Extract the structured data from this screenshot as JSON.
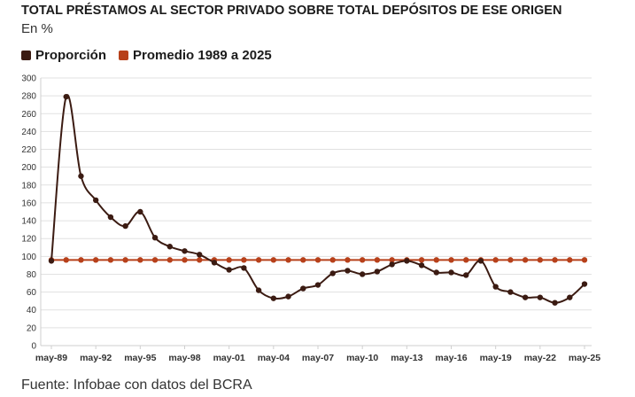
{
  "title": "TOTAL PRÉSTAMOS AL SECTOR PRIVADO SOBRE TOTAL DEPÓSITOS DE ESE ORIGEN",
  "subtitle": "En %",
  "source": "Fuente: Infobae con datos del BCRA",
  "chart_data": {
    "type": "line",
    "ylim": [
      0,
      300
    ],
    "yticks": [
      0,
      20,
      40,
      60,
      80,
      100,
      120,
      140,
      160,
      180,
      200,
      220,
      240,
      260,
      280,
      300
    ],
    "ytick_labels": [
      "0",
      "20",
      "40",
      "60",
      "80",
      "100",
      "120",
      "140",
      "160",
      "180",
      "200",
      "220",
      "240",
      "260",
      "280",
      "300"
    ],
    "xtick_labels": [
      "may-89",
      "may-92",
      "may-95",
      "may-98",
      "may-01",
      "may-04",
      "may-07",
      "may-10",
      "may-13",
      "may-16",
      "may-19",
      "may-22",
      "may-25"
    ],
    "grid": true,
    "legend_position": "top-left",
    "series": [
      {
        "name": "Proporción",
        "color": "#3b1b12",
        "values": [
          95,
          279,
          190,
          163,
          144,
          134,
          150,
          121,
          111,
          106,
          102,
          93,
          85,
          87,
          62,
          53,
          55,
          64,
          68,
          81,
          84,
          80,
          83,
          91,
          95,
          90,
          82,
          82,
          79,
          95,
          66,
          60,
          54,
          54,
          48,
          54,
          69
        ]
      },
      {
        "name": "Promedio 1989 a 2025",
        "color": "#b7401a",
        "values": [
          96,
          96,
          96,
          96,
          96,
          96,
          96,
          96,
          96,
          96,
          96,
          96,
          96,
          96,
          96,
          96,
          96,
          96,
          96,
          96,
          96,
          96,
          96,
          96,
          96,
          96,
          96,
          96,
          96,
          96,
          96,
          96,
          96,
          96,
          96,
          96,
          96
        ]
      }
    ]
  }
}
